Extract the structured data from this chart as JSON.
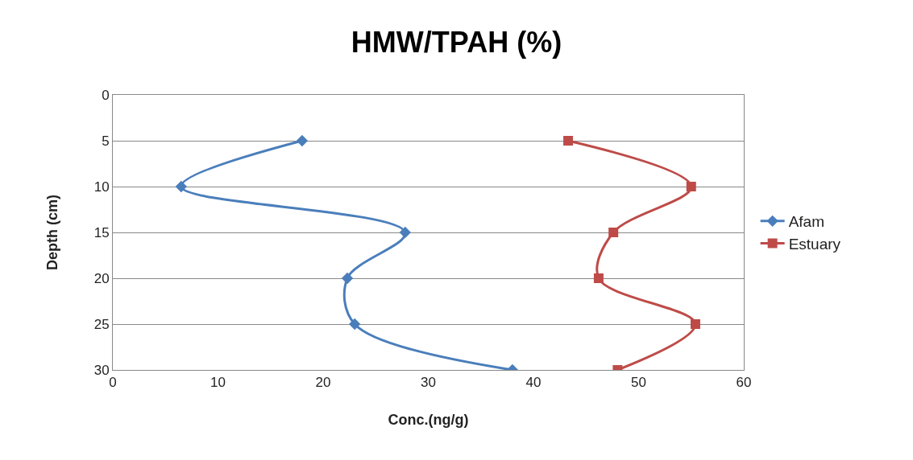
{
  "chart_data": {
    "type": "line",
    "title": "HMW/TPAH (%)",
    "xlabel": "Conc.(ng/g)",
    "ylabel": "Depth (cm)",
    "series": [
      {
        "name": "Afam",
        "color": "#4a7ebb",
        "marker": "diamond",
        "x": [
          18,
          6.5,
          27.8,
          22.3,
          23,
          38
        ],
        "values": [
          5,
          10,
          15,
          20,
          25,
          30
        ]
      },
      {
        "name": "Estuary",
        "color": "#be4b48",
        "marker": "square",
        "x": [
          43.3,
          55,
          47.6,
          46.2,
          55.4,
          48
        ],
        "values": [
          5,
          10,
          15,
          20,
          25,
          30
        ]
      }
    ],
    "xlim": [
      0,
      60
    ],
    "xticks": [
      0,
      10,
      20,
      30,
      40,
      50,
      60
    ],
    "ylim": [
      30,
      0
    ],
    "yticks": [
      0,
      5,
      10,
      15,
      20,
      25,
      30
    ],
    "grid": "y",
    "legend": "right",
    "line_style": "solid"
  }
}
